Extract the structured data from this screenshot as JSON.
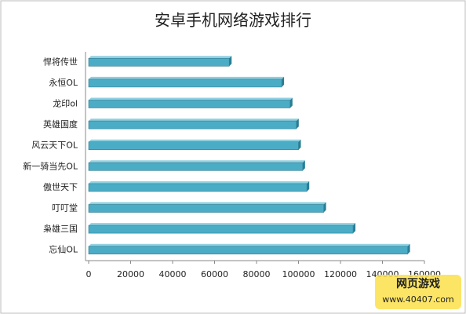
{
  "chart_data": {
    "type": "hbar",
    "title": "安卓手机网络游戏排行",
    "categories": [
      "悍将传世",
      "永恒OL",
      "龙印ol",
      "英雄国度",
      "风云天下OL",
      "新一骑当先OL",
      "傲世天下",
      "叮叮堂",
      "枭雄三国",
      "忘仙OL"
    ],
    "values": [
      67000,
      92000,
      96000,
      99000,
      100000,
      102000,
      104000,
      112000,
      126000,
      152000
    ],
    "color": "#4bacc6",
    "xlim": [
      0,
      160000
    ],
    "xticks": [
      0,
      20000,
      40000,
      60000,
      80000,
      100000,
      120000,
      140000,
      160000
    ]
  },
  "watermark": {
    "brand": "网页游戏",
    "url": "www.40407.com"
  }
}
